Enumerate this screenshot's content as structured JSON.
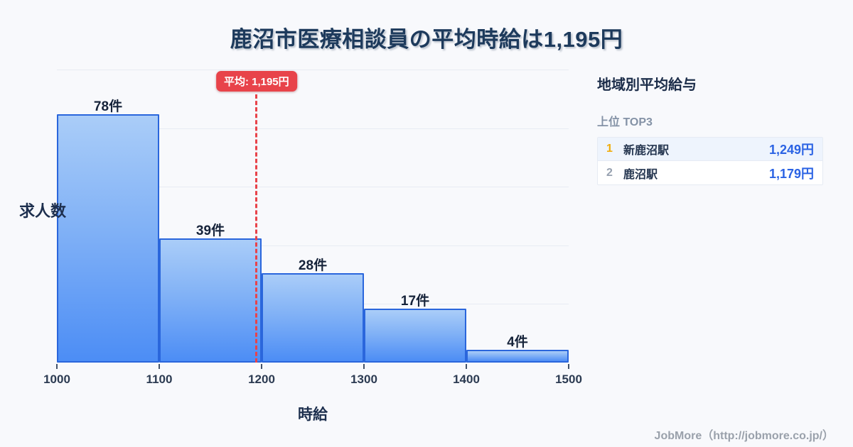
{
  "title": "鹿沼市医療相談員の平均時給は1,195円",
  "chart_data": {
    "type": "bar",
    "subtype": "histogram",
    "categories": [
      "1000-1100",
      "1100-1200",
      "1200-1300",
      "1300-1400",
      "1400-1500"
    ],
    "values": [
      78,
      39,
      28,
      17,
      4
    ],
    "value_unit": "件",
    "labels": [
      "78件",
      "39件",
      "28件",
      "17件",
      "4件"
    ],
    "xlabel": "時給",
    "ylabel": "求人数",
    "x_ticks": [
      "1000",
      "1100",
      "1200",
      "1300",
      "1400",
      "1500"
    ],
    "xlim": [
      1000,
      1500
    ],
    "ylim": [
      0,
      92
    ],
    "gridline_divisions": 5,
    "grid": "horizontal",
    "average": {
      "value": 1195,
      "label": "平均: 1,195円"
    },
    "colors": {
      "bar_fill_top": "#aacdf8",
      "bar_fill_bottom": "#4c8df5",
      "bar_border": "#2a66dc",
      "average_red": "#e8434a",
      "title_navy": "#1d3a5c",
      "background": "#f8f9fc"
    }
  },
  "sidebar": {
    "title": "地域別平均給与",
    "subtitle": "上位 TOP3",
    "value_color": "#2b63e4",
    "rank1_color": "#f0ad0d",
    "rows": [
      {
        "rank": "1",
        "name": "新鹿沼駅",
        "value": "1,249円"
      },
      {
        "rank": "2",
        "name": "鹿沼駅",
        "value": "1,179円"
      }
    ]
  },
  "footer": {
    "credit": "JobMore（http://jobmore.co.jp/）"
  }
}
